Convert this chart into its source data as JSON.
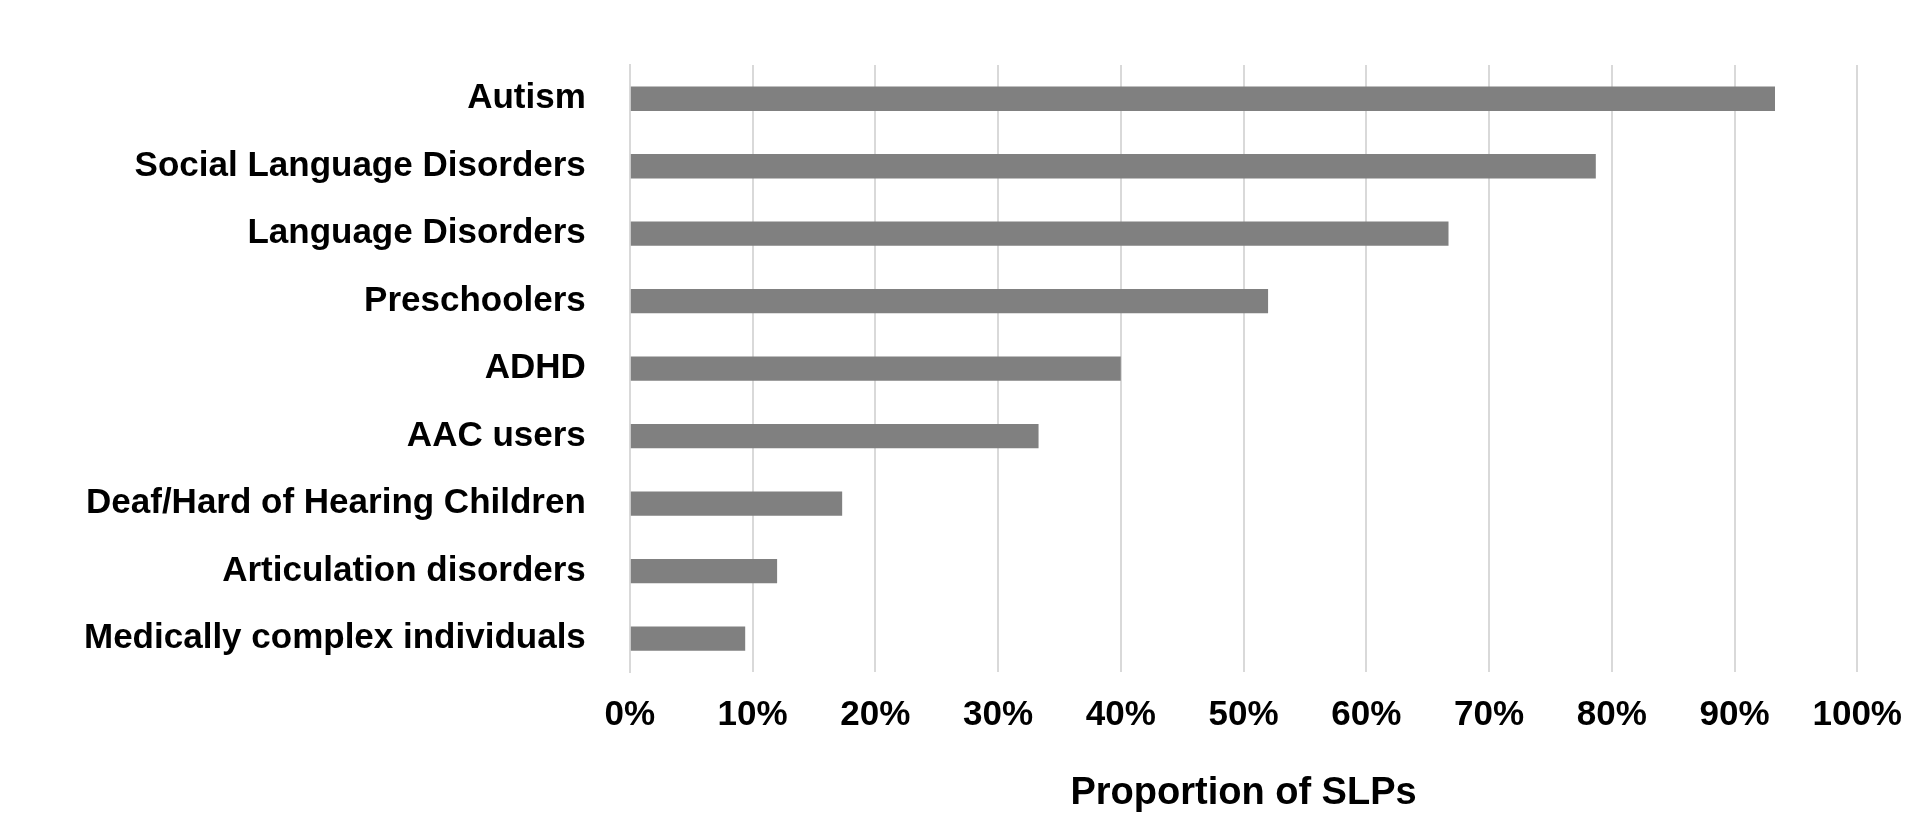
{
  "chart_data": {
    "type": "bar",
    "orientation": "horizontal",
    "xlabel": "Proportion of SLPs",
    "categories": [
      "Autism",
      "Social Language Disorders",
      "Language Disorders",
      "Preschoolers",
      "ADHD",
      "AAC users",
      "Deaf/Hard of Hearing Children",
      "Articulation disorders",
      "Medically complex individuals"
    ],
    "values": [
      93.3,
      78.7,
      66.7,
      52.0,
      40.0,
      33.3,
      17.3,
      12.0,
      9.4
    ],
    "color": "#808080",
    "xlim": [
      0,
      100
    ],
    "xticks": [
      {
        "value": 0,
        "label": "0%"
      },
      {
        "value": 10,
        "label": "10%"
      },
      {
        "value": 20,
        "label": "20%"
      },
      {
        "value": 30,
        "label": "30%"
      },
      {
        "value": 40,
        "label": "40%"
      },
      {
        "value": 50,
        "label": "50%"
      },
      {
        "value": 60,
        "label": "60%"
      },
      {
        "value": 70,
        "label": "70%"
      },
      {
        "value": 80,
        "label": "80%"
      },
      {
        "value": 90,
        "label": "90%"
      },
      {
        "value": 100,
        "label": "100%"
      }
    ],
    "grid": "x",
    "legend": false
  }
}
